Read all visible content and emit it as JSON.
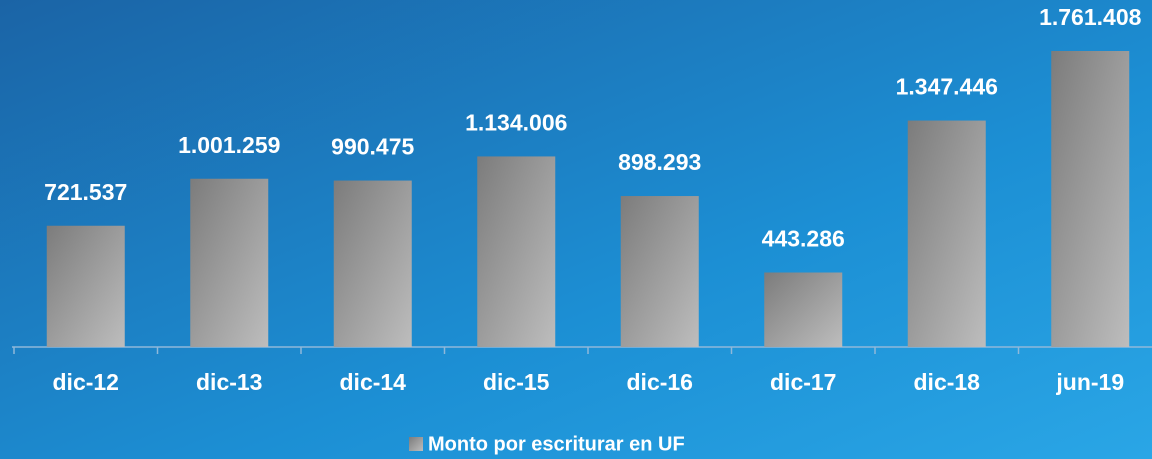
{
  "chart_data": {
    "type": "bar",
    "categories": [
      "dic-12",
      "dic-13",
      "dic-14",
      "dic-15",
      "dic-16",
      "dic-17",
      "dic-18",
      "jun-19"
    ],
    "series": [
      {
        "name": "Monto por escriturar en UF",
        "color": "#9a9a9a",
        "values": [
          721537,
          1001259,
          990475,
          1134006,
          898293,
          443286,
          1347446,
          1761408
        ],
        "value_labels": [
          "721.537",
          "1.001.259",
          "990.475",
          "1.134.006",
          "898.293",
          "443.286",
          "1.347.446",
          "1.761.408"
        ]
      }
    ],
    "legend": "bottom"
  }
}
